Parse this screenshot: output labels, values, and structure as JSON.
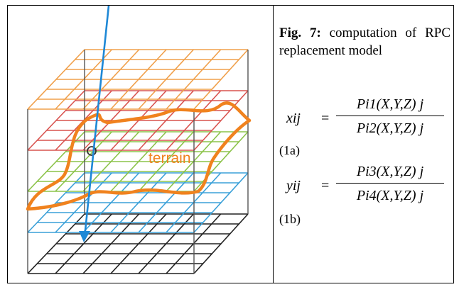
{
  "figure": {
    "terrain_label": "terrain",
    "colors": {
      "layer_top": "#f0a04b",
      "layer_2": "#d9534f",
      "layer_3": "#8cc34a",
      "layer_4": "#3aa0d8",
      "layer_bottom": "#222222",
      "terrain": "#f0821e",
      "ray": "#1e88d6"
    }
  },
  "caption": {
    "label": "Fig. 7:",
    "text": " computation of RPC replacement model"
  },
  "equations": {
    "eq1": {
      "lhs": "xij",
      "equals": "=",
      "numerator": "Pi1(X,Y,Z) j",
      "denominator": "Pi2(X,Y,Z) j",
      "number": "(1a)"
    },
    "eq2": {
      "lhs": "yij",
      "equals": "=",
      "numerator": "Pi3(X,Y,Z) j",
      "denominator": "Pi4(X,Y,Z) j",
      "number": "(1b)"
    }
  }
}
